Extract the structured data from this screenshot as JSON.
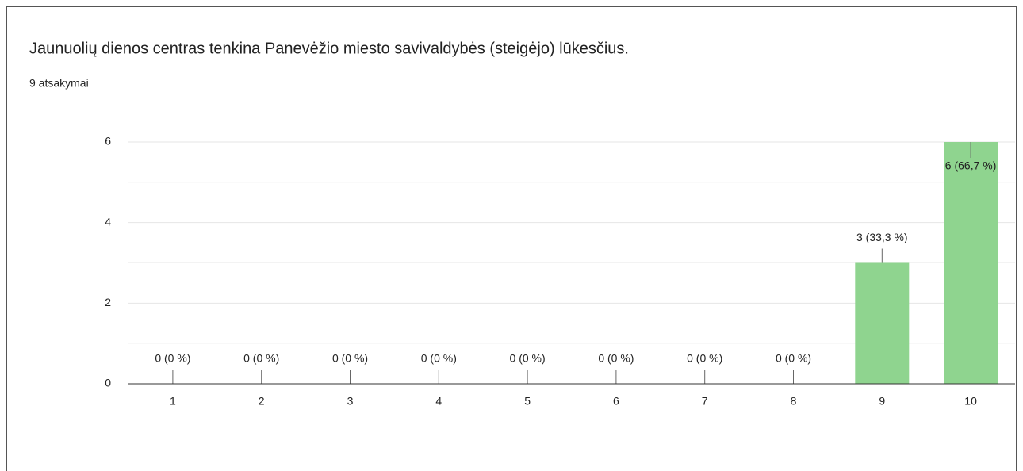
{
  "chart_data": {
    "type": "bar",
    "title": "Jaunuolių dienos centras tenkina Panevėžio miesto savivaldybės (steigėjo) lūkesčius.",
    "subtitle": "9 atsakymai",
    "categories": [
      "1",
      "2",
      "3",
      "4",
      "5",
      "6",
      "7",
      "8",
      "9",
      "10"
    ],
    "values": [
      0,
      0,
      0,
      0,
      0,
      0,
      0,
      0,
      3,
      6
    ],
    "value_labels": [
      "0 (0 %)",
      "0 (0 %)",
      "0 (0 %)",
      "0 (0 %)",
      "0 (0 %)",
      "0 (0 %)",
      "0 (0 %)",
      "0 (0 %)",
      "3 (33,3 %)",
      "6 (66,7 %)"
    ],
    "color": "#8fd48f",
    "ylim": [
      0,
      6
    ],
    "yticks": [
      0,
      2,
      4,
      6
    ],
    "minor_yticks": [
      1,
      3,
      5
    ],
    "grid": true
  }
}
